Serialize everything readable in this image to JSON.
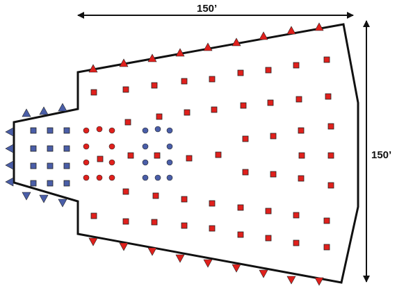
{
  "dimensions": {
    "width_label": "150’",
    "height_label": "150’"
  },
  "colors": {
    "outline": "#111111",
    "red": "#e0201c",
    "blue": "#4a5ea8",
    "mark_stroke": "#222222"
  },
  "legend_semantics": {
    "red_triangle": "red-triangle-marker",
    "blue_triangle": "blue-triangle-marker",
    "red_square": "red-square-marker",
    "blue_square": "blue-square-marker",
    "red_circle": "red-circle-marker",
    "blue_circle": "blue-circle-marker"
  }
}
